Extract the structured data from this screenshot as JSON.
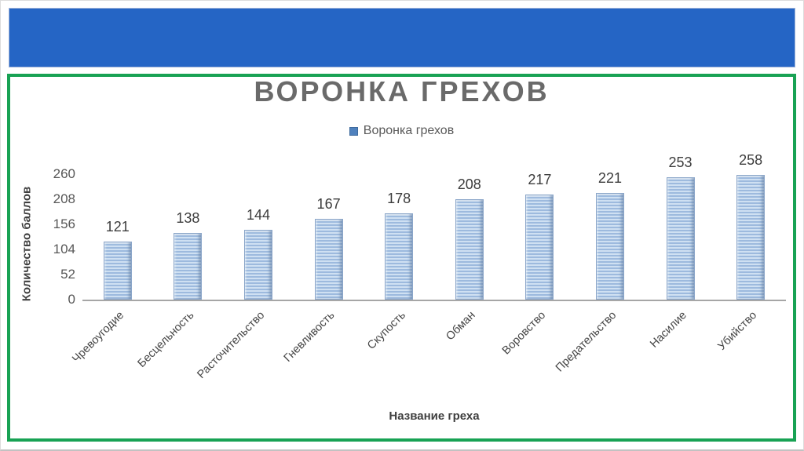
{
  "page": {
    "banner_color": "#2565C5",
    "frame_border_color": "#18A254"
  },
  "chart_data": {
    "type": "bar",
    "title": "ВОРОНКА ГРЕХОВ",
    "legend": [
      "Воронка грехов"
    ],
    "legend_position": "top-center",
    "xlabel": "Название греха",
    "ylabel": "Количество баллов",
    "categories": [
      "Чревоугодие",
      "Бесцельность",
      "Расточительство",
      "Гневливость",
      "Скупость",
      "Обман",
      "Воровство",
      "Предательство",
      "Насилие",
      "Убийство"
    ],
    "values": [
      121,
      138,
      144,
      167,
      178,
      208,
      217,
      221,
      253,
      258
    ],
    "ylim": [
      0,
      260
    ],
    "yticks": [
      0,
      52,
      104,
      156,
      208,
      260
    ],
    "grid": false,
    "bar_stripe_light": "#cfe0f2",
    "bar_stripe_dark": "#9dbade",
    "bar_border_color": "#8ba6c9",
    "legend_marker_color": "#4f81bd"
  }
}
